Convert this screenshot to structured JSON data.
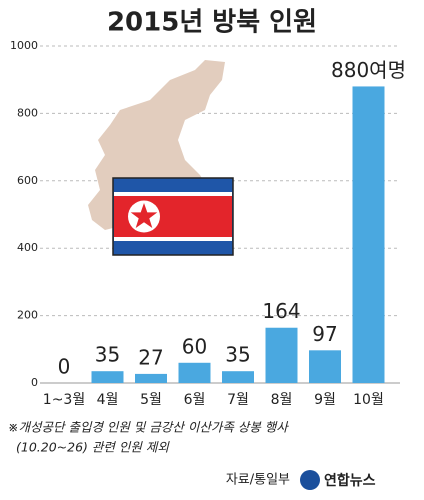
{
  "chart_data": {
    "type": "bar",
    "title": "2015년 방북 인원",
    "categories": [
      "1~3월",
      "4월",
      "5월",
      "6월",
      "7월",
      "8월",
      "9월",
      "10월"
    ],
    "values": [
      0,
      35,
      27,
      60,
      35,
      164,
      97,
      880
    ],
    "value_labels": [
      "0",
      "35",
      "27",
      "60",
      "35",
      "164",
      "97",
      "880여명"
    ],
    "color": "#4aa8e0",
    "ylim": [
      0,
      1000
    ],
    "yticks": [
      0,
      200,
      400,
      600,
      800,
      1000
    ],
    "grid": true,
    "notes": [
      "※개성공단 출입경 인원 및 금강산 이산가족 상봉 행사",
      "(10.20~26) 관련 인원 제외"
    ],
    "source": "자료/통일부",
    "credit": "연합뉴스"
  }
}
